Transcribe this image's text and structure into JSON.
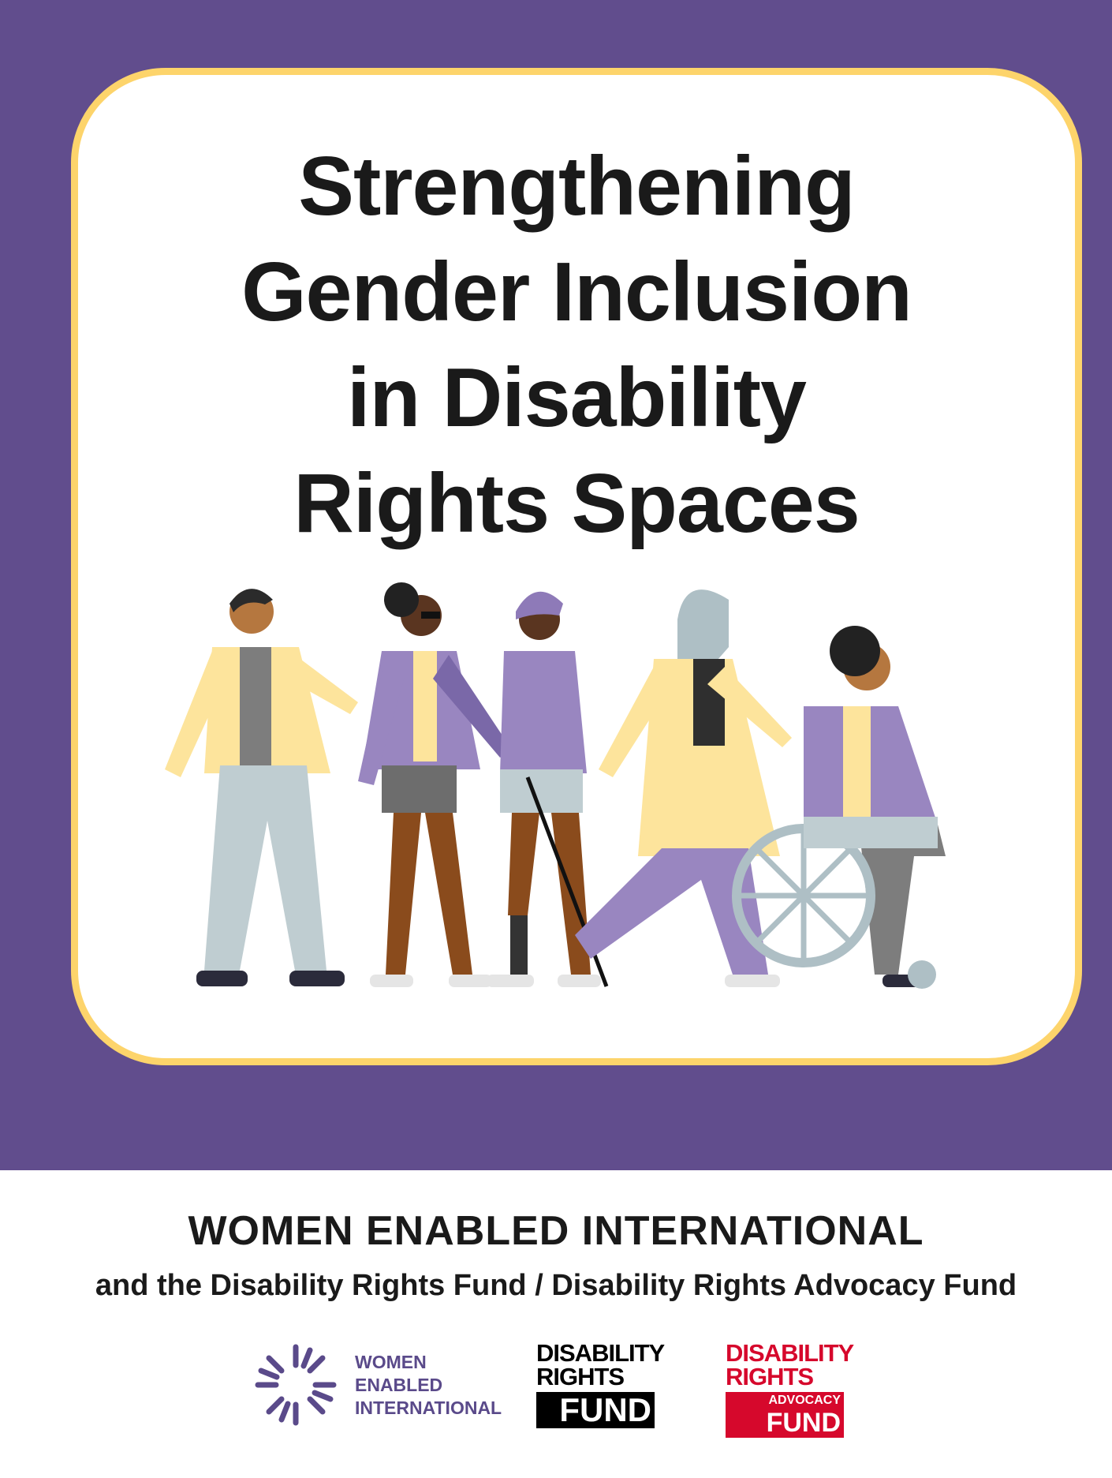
{
  "cover": {
    "title_lines": [
      "Strengthening",
      "Gender Inclusion",
      "in Disability",
      "Rights Spaces"
    ],
    "illustration": "five diverse people walking, including a blind person with cane, a person with prosthetic leg, and a wheelchair user",
    "colors": {
      "background": "#614d8d",
      "card_border": "#fdd46b",
      "card": "#ffffff"
    }
  },
  "footer": {
    "organization": "WOMEN ENABLED INTERNATIONAL",
    "partners": "and the Disability Rights Fund / Disability Rights Advocacy Fund",
    "logos": [
      {
        "name": "women-enabled-international",
        "text": [
          "WOMEN",
          "ENABLED",
          "INTERNATIONAL"
        ],
        "color": "#5a4a8a"
      },
      {
        "name": "disability-rights-fund",
        "text": [
          "DISABILITY",
          "RIGHTS",
          "FUND"
        ],
        "color": "#000000"
      },
      {
        "name": "disability-rights-advocacy-fund",
        "text": [
          "DISABILITY",
          "RIGHTS",
          "ADVOCACY",
          "FUND"
        ],
        "color": "#d6082c"
      }
    ]
  }
}
